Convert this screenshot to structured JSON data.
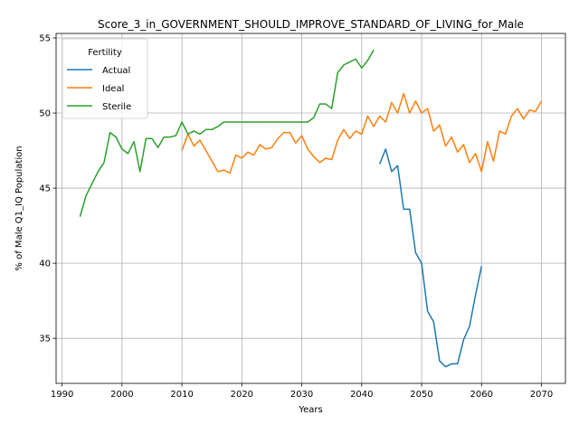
{
  "chart_data": {
    "type": "line",
    "title": "Score_3_in_GOVERNMENT_SHOULD_IMPROVE_STANDARD_OF_LIVING_for_Male",
    "xlabel": "Years",
    "ylabel": "% of Male Q1_IQ Population",
    "xlim": [
      1989,
      2074
    ],
    "ylim": [
      32,
      55.3
    ],
    "xticks": [
      1990,
      2000,
      2010,
      2020,
      2030,
      2040,
      2050,
      2060,
      2070
    ],
    "yticks": [
      35,
      40,
      45,
      50,
      55
    ],
    "grid": true,
    "legend": {
      "title": "Fertility",
      "placement": "top-left"
    },
    "series": [
      {
        "name": "Actual",
        "color": "#1f77b4",
        "x": [
          2043,
          2044,
          2045,
          2046,
          2047,
          2048,
          2049,
          2050,
          2051,
          2052,
          2053,
          2054,
          2055,
          2056,
          2057,
          2058,
          2059,
          2060
        ],
        "y": [
          46.6,
          47.6,
          46.1,
          46.5,
          43.6,
          43.6,
          40.7,
          40.0,
          36.8,
          36.1,
          33.5,
          33.1,
          33.3,
          33.3,
          34.9,
          35.8,
          37.9,
          39.8
        ]
      },
      {
        "name": "Ideal",
        "color": "#ff7f0e",
        "x": [
          2010,
          2011,
          2012,
          2013,
          2014,
          2015,
          2016,
          2017,
          2018,
          2019,
          2020,
          2021,
          2022,
          2023,
          2024,
          2025,
          2026,
          2027,
          2028,
          2029,
          2030,
          2031,
          2032,
          2033,
          2034,
          2035,
          2036,
          2037,
          2038,
          2039,
          2040,
          2041,
          2042,
          2043,
          2044,
          2045,
          2046,
          2047,
          2048,
          2049,
          2050,
          2051,
          2052,
          2053,
          2054,
          2055,
          2056,
          2057,
          2058,
          2059,
          2060,
          2061,
          2062,
          2063,
          2064,
          2065,
          2066,
          2067,
          2068,
          2069,
          2070
        ],
        "y": [
          47.5,
          48.6,
          47.8,
          48.2,
          47.5,
          46.8,
          46.1,
          46.2,
          46.0,
          47.2,
          47.0,
          47.4,
          47.2,
          47.9,
          47.6,
          47.7,
          48.3,
          48.7,
          48.7,
          48.0,
          48.5,
          47.6,
          47.1,
          46.7,
          47.0,
          46.9,
          48.2,
          48.9,
          48.3,
          48.8,
          48.6,
          49.8,
          49.1,
          49.8,
          49.4,
          50.7,
          50.0,
          51.3,
          50.0,
          50.8,
          50.0,
          50.3,
          48.8,
          49.2,
          47.8,
          48.4,
          47.4,
          47.9,
          46.7,
          47.3,
          46.1,
          48.1,
          46.8,
          48.8,
          48.6,
          49.8,
          50.3,
          49.6,
          50.2,
          50.1,
          50.8
        ]
      },
      {
        "name": "Sterile",
        "color": "#2ca02c",
        "x": [
          1993,
          1994,
          1995,
          1996,
          1997,
          1998,
          1999,
          2000,
          2001,
          2002,
          2003,
          2004,
          2005,
          2006,
          2007,
          2008,
          2009,
          2010,
          2011,
          2012,
          2013,
          2014,
          2015,
          2016,
          2017,
          2018,
          2019,
          2020,
          2021,
          2022,
          2023,
          2024,
          2025,
          2026,
          2027,
          2028,
          2029,
          2030,
          2031,
          2032,
          2033,
          2034,
          2035,
          2036,
          2037,
          2038,
          2039,
          2040,
          2041,
          2042
        ],
        "y": [
          43.1,
          44.5,
          45.3,
          46.1,
          46.7,
          48.7,
          48.4,
          47.6,
          47.3,
          48.1,
          46.1,
          48.3,
          48.3,
          47.7,
          48.4,
          48.4,
          48.5,
          49.4,
          48.6,
          48.8,
          48.6,
          48.9,
          48.9,
          49.1,
          49.4,
          49.4,
          49.4,
          49.4,
          49.4,
          49.4,
          49.4,
          49.4,
          49.4,
          49.4,
          49.4,
          49.4,
          49.4,
          49.4,
          49.4,
          49.7,
          50.6,
          50.6,
          50.3,
          52.7,
          53.2,
          53.4,
          53.6,
          53.0,
          53.5,
          54.2
        ]
      }
    ]
  }
}
